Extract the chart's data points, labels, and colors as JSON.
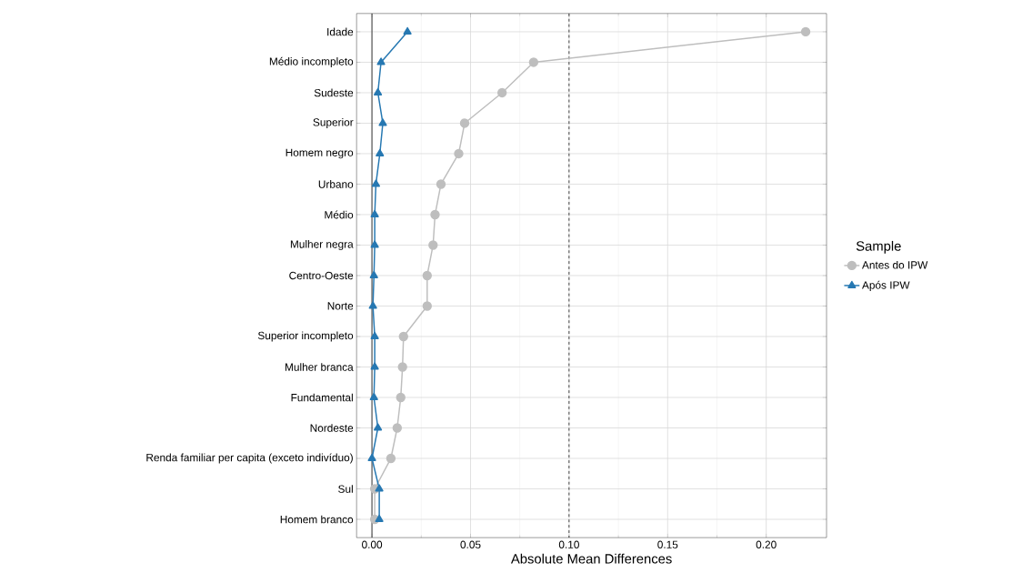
{
  "chart_data": {
    "type": "line",
    "xlabel": "Absolute Mean Differences",
    "legend_title": "Sample",
    "orientation": "horizontal",
    "categories": [
      "Idade",
      "Médio incompleto",
      "Sudeste",
      "Superior",
      "Homem negro",
      "Urbano",
      "Médio",
      "Mulher negra",
      "Centro-Oeste",
      "Norte",
      "Superior incompleto",
      "Mulher branca",
      "Fundamental",
      "Nordeste",
      "Renda familiar per capita (exceto indivíduo)",
      "Sul",
      "Homem branco"
    ],
    "series": [
      {
        "name": "Antes do IPW",
        "color": "#bebebe",
        "marker": "circle",
        "values": [
          0.22,
          0.082,
          0.066,
          0.047,
          0.044,
          0.035,
          0.032,
          0.031,
          0.028,
          0.028,
          0.016,
          0.0155,
          0.0146,
          0.0128,
          0.0096,
          0.0014,
          0.0014
        ]
      },
      {
        "name": "Após IPW",
        "color": "#2678b2",
        "marker": "triangle",
        "values": [
          0.018,
          0.0046,
          0.003,
          0.0055,
          0.004,
          0.002,
          0.0014,
          0.0014,
          0.001,
          0.0005,
          0.0014,
          0.0014,
          0.001,
          0.003,
          0.0,
          0.0037,
          0.0037
        ]
      }
    ],
    "xlim": [
      -0.0078,
      0.2306
    ],
    "xticks": [
      {
        "value": 0,
        "label": "0.00"
      },
      {
        "value": 0.05,
        "label": "0.05"
      },
      {
        "value": 0.1,
        "label": "0.10"
      },
      {
        "value": 0.15,
        "label": "0.15"
      },
      {
        "value": 0.2,
        "label": "0.20"
      }
    ],
    "ref_lines": [
      {
        "axis": "x",
        "value": 0,
        "color": "#000000",
        "line_style": "solid"
      },
      {
        "axis": "x",
        "value": 0.1,
        "color": "#000000",
        "line_style": "dashed"
      }
    ],
    "grid": true,
    "legend": "right"
  }
}
